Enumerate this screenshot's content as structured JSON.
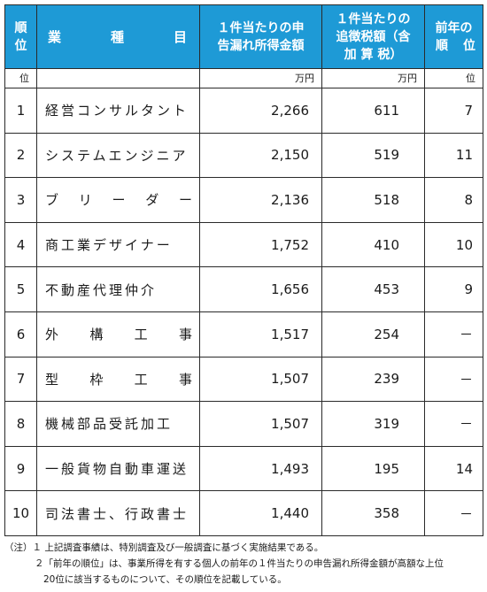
{
  "table": {
    "headers": {
      "rank": [
        "順",
        "位"
      ],
      "gyoshu": [
        "業",
        "種",
        "目"
      ],
      "amount_lines": [
        "１件当たりの申",
        "告漏れ所得金額"
      ],
      "tax_lines": [
        "１件当たりの",
        "追徴税額（含",
        "加 算 税）"
      ],
      "prev_line1": "前年の",
      "prev_line2": [
        "順",
        "位"
      ]
    },
    "units": {
      "rank": "位",
      "amount": "万円",
      "tax": "万円",
      "prev": "位"
    },
    "rows": [
      {
        "rank": "1",
        "name": "経営コンサルタント",
        "wide": false,
        "amount": "2,266",
        "tax": "611",
        "prev": "7"
      },
      {
        "rank": "2",
        "name": "システムエンジニア",
        "wide": false,
        "amount": "2,150",
        "tax": "519",
        "prev": "11"
      },
      {
        "rank": "3",
        "name": "ブ リ ー ダ ー",
        "wide": true,
        "chars": [
          "ブ",
          "リ",
          "ー",
          "ダ",
          "ー"
        ],
        "amount": "2,136",
        "tax": "518",
        "prev": "8"
      },
      {
        "rank": "4",
        "name": "商工業デザイナー",
        "wide": false,
        "amount": "1,752",
        "tax": "410",
        "prev": "10"
      },
      {
        "rank": "5",
        "name": "不動産代理仲介",
        "wide": false,
        "amount": "1,656",
        "tax": "453",
        "prev": "9"
      },
      {
        "rank": "6",
        "name": "外 構 工 事",
        "wide": true,
        "chars": [
          "外",
          "構",
          "工",
          "事"
        ],
        "amount": "1,517",
        "tax": "254",
        "prev": "－"
      },
      {
        "rank": "7",
        "name": "型 枠 工 事",
        "wide": true,
        "chars": [
          "型",
          "枠",
          "工",
          "事"
        ],
        "amount": "1,507",
        "tax": "239",
        "prev": "－"
      },
      {
        "rank": "8",
        "name": "機械部品受託加工",
        "wide": false,
        "amount": "1,507",
        "tax": "319",
        "prev": "－"
      },
      {
        "rank": "9",
        "name": "一般貨物自動車運送",
        "wide": false,
        "amount": "1,493",
        "tax": "195",
        "prev": "14"
      },
      {
        "rank": "10",
        "name": "司法書士、行政書士",
        "wide": false,
        "amount": "1,440",
        "tax": "358",
        "prev": "－"
      }
    ]
  },
  "notes": {
    "line1": "（注）１ 上記調査事績は、特別調査及び一般調査に基づく実施結果である。",
    "line2": "２「前年の順位」は、事業所得を有する個人の前年の１件当たりの申告漏れ所得金額が高額な上位",
    "line3": "20位に該当するものについて、その順位を記載している。"
  },
  "colors": {
    "header_bg": "#1e9ad6",
    "header_text": "#ffffff",
    "border": "#2a2a2a"
  }
}
